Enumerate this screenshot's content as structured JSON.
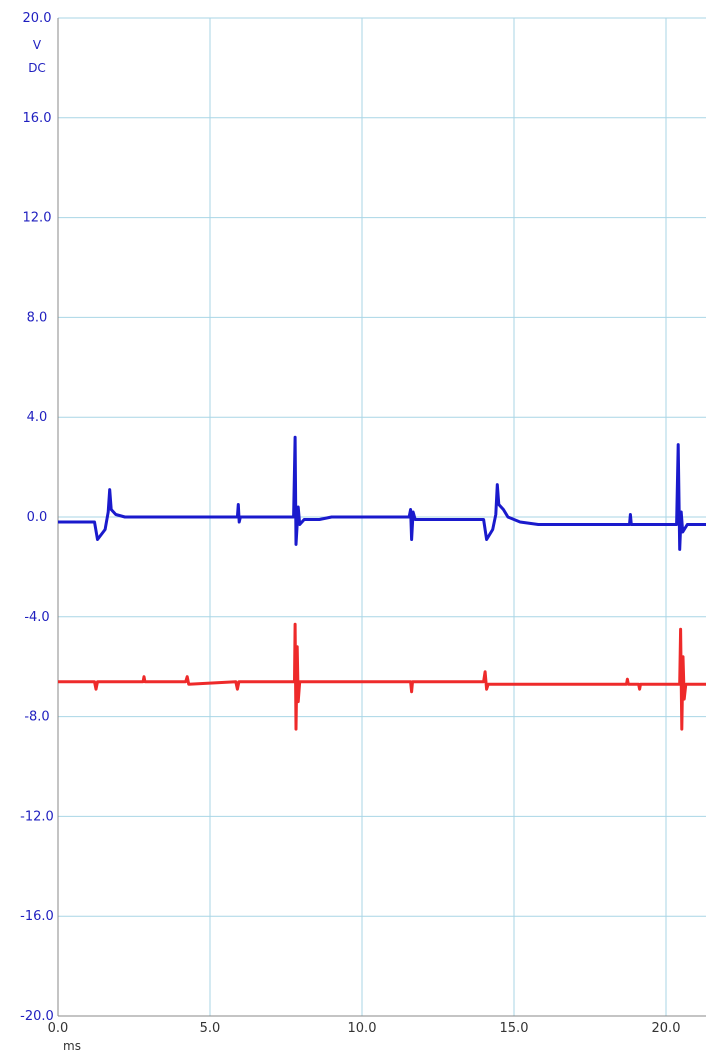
{
  "chart_data": {
    "type": "line",
    "y_unit_lines": [
      "V",
      "DC"
    ],
    "xlabel": "ms",
    "xlim": [
      0,
      21.5
    ],
    "ylim": [
      -20,
      20
    ],
    "grid": true,
    "x_ticks": [
      {
        "value": 0,
        "label": "0.0"
      },
      {
        "value": 5,
        "label": "5.0"
      },
      {
        "value": 10,
        "label": "10.0"
      },
      {
        "value": 15,
        "label": "15.0"
      },
      {
        "value": 20,
        "label": "20.0"
      }
    ],
    "y_ticks": [
      {
        "value": 20,
        "label": "20.0"
      },
      {
        "value": 16,
        "label": "16.0"
      },
      {
        "value": 12,
        "label": "12.0"
      },
      {
        "value": 8,
        "label": "8.0"
      },
      {
        "value": 4,
        "label": "4.0"
      },
      {
        "value": 0,
        "label": "0.0"
      },
      {
        "value": -4,
        "label": "-4.0"
      },
      {
        "value": -8,
        "label": "-8.0"
      },
      {
        "value": -12,
        "label": "-12.0"
      },
      {
        "value": -16,
        "label": "-16.0"
      },
      {
        "value": -20,
        "label": "-20.0"
      }
    ],
    "series": [
      {
        "color": "#1a1acc",
        "points": [
          [
            0.0,
            -0.2
          ],
          [
            1.2,
            -0.2
          ],
          [
            1.3,
            -0.9
          ],
          [
            1.55,
            -0.5
          ],
          [
            1.65,
            0.2
          ],
          [
            1.7,
            1.1
          ],
          [
            1.75,
            0.3
          ],
          [
            1.9,
            0.1
          ],
          [
            2.2,
            0.0
          ],
          [
            5.9,
            0.0
          ],
          [
            5.93,
            0.5
          ],
          [
            5.96,
            -0.2
          ],
          [
            6.0,
            0.0
          ],
          [
            7.75,
            0.0
          ],
          [
            7.8,
            3.2
          ],
          [
            7.83,
            -1.1
          ],
          [
            7.9,
            0.4
          ],
          [
            7.95,
            -0.3
          ],
          [
            8.1,
            -0.1
          ],
          [
            8.6,
            -0.1
          ],
          [
            9.0,
            0.0
          ],
          [
            11.55,
            0.0
          ],
          [
            11.6,
            0.3
          ],
          [
            11.63,
            -0.9
          ],
          [
            11.68,
            0.2
          ],
          [
            11.75,
            -0.1
          ],
          [
            14.0,
            -0.1
          ],
          [
            14.1,
            -0.9
          ],
          [
            14.3,
            -0.5
          ],
          [
            14.4,
            0.1
          ],
          [
            14.45,
            1.3
          ],
          [
            14.5,
            0.5
          ],
          [
            14.65,
            0.3
          ],
          [
            14.8,
            0.0
          ],
          [
            15.2,
            -0.2
          ],
          [
            15.8,
            -0.3
          ],
          [
            18.8,
            -0.3
          ],
          [
            18.83,
            0.1
          ],
          [
            18.86,
            -0.3
          ],
          [
            20.35,
            -0.3
          ],
          [
            20.4,
            2.9
          ],
          [
            20.45,
            -1.3
          ],
          [
            20.5,
            0.2
          ],
          [
            20.55,
            -0.6
          ],
          [
            20.7,
            -0.3
          ],
          [
            21.5,
            -0.3
          ]
        ]
      },
      {
        "color": "#ee2a2a",
        "points": [
          [
            0.0,
            -6.6
          ],
          [
            1.2,
            -6.6
          ],
          [
            1.25,
            -6.9
          ],
          [
            1.3,
            -6.6
          ],
          [
            2.8,
            -6.6
          ],
          [
            2.83,
            -6.4
          ],
          [
            2.86,
            -6.6
          ],
          [
            4.2,
            -6.6
          ],
          [
            4.25,
            -6.4
          ],
          [
            4.3,
            -6.7
          ],
          [
            5.85,
            -6.6
          ],
          [
            5.9,
            -6.9
          ],
          [
            5.95,
            -6.6
          ],
          [
            7.78,
            -6.6
          ],
          [
            7.8,
            -4.3
          ],
          [
            7.83,
            -8.5
          ],
          [
            7.87,
            -5.2
          ],
          [
            7.9,
            -7.4
          ],
          [
            7.95,
            -6.6
          ],
          [
            11.6,
            -6.6
          ],
          [
            11.63,
            -7.0
          ],
          [
            11.66,
            -6.6
          ],
          [
            14.0,
            -6.6
          ],
          [
            14.05,
            -6.2
          ],
          [
            14.1,
            -6.9
          ],
          [
            14.15,
            -6.7
          ],
          [
            18.7,
            -6.7
          ],
          [
            18.73,
            -6.5
          ],
          [
            18.76,
            -6.7
          ],
          [
            19.1,
            -6.7
          ],
          [
            19.13,
            -6.9
          ],
          [
            19.16,
            -6.7
          ],
          [
            20.45,
            -6.7
          ],
          [
            20.48,
            -4.5
          ],
          [
            20.52,
            -8.5
          ],
          [
            20.56,
            -5.6
          ],
          [
            20.6,
            -7.3
          ],
          [
            20.65,
            -6.7
          ],
          [
            21.5,
            -6.7
          ]
        ]
      }
    ]
  }
}
